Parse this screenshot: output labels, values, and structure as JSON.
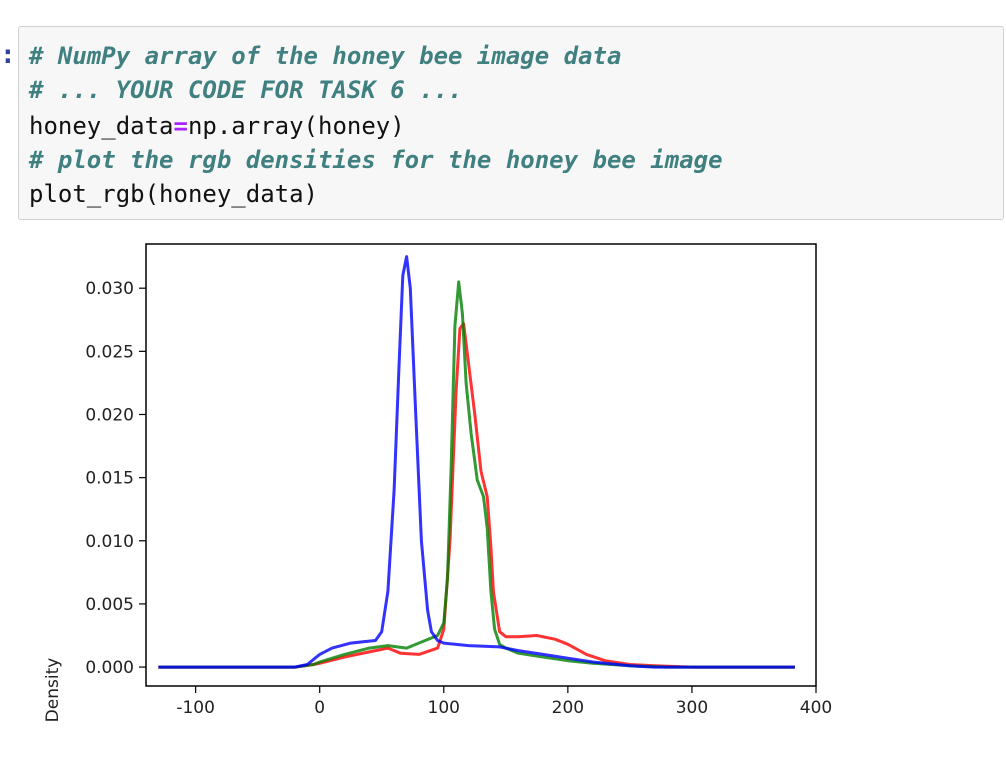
{
  "cell": {
    "prompt": ":",
    "line1": "# NumPy array of the honey bee image data",
    "line2": "# ... YOUR CODE FOR TASK 6 ...",
    "line3_left": "honey_data",
    "line3_op": "=",
    "line3_right": "np.array(honey)",
    "line4": "# plot the rgb densities for the honey bee image",
    "line5": "plot_rgb(honey_data)"
  },
  "colors": {
    "comment": "#408080",
    "operator": "#aa22ff",
    "red": "#ff0000",
    "green": "#008000",
    "blue": "#0000ff"
  },
  "chart_data": {
    "type": "line",
    "title": "",
    "xlabel": "",
    "ylabel": "Density",
    "xlim": [
      -140,
      400
    ],
    "ylim": [
      -0.0015,
      0.0335
    ],
    "xticks": [
      -100,
      0,
      100,
      200,
      300,
      400
    ],
    "xtick_labels": [
      "-100",
      "0",
      "100",
      "200",
      "300",
      "400"
    ],
    "yticks": [
      0.0,
      0.005,
      0.01,
      0.015,
      0.02,
      0.025,
      0.03
    ],
    "ytick_labels": [
      "0.000",
      "0.005",
      "0.010",
      "0.015",
      "0.020",
      "0.025",
      "0.030"
    ],
    "grid": false,
    "legend": "none",
    "series": [
      {
        "color": "#ff0000",
        "x": [
          -130,
          -20,
          -5,
          0,
          20,
          40,
          55,
          65,
          80,
          95,
          100,
          105,
          110,
          113,
          116,
          120,
          125,
          130,
          135,
          138,
          140,
          145,
          150,
          160,
          175,
          190,
          200,
          215,
          230,
          250,
          270,
          300,
          383
        ],
        "y": [
          0.0,
          0.0,
          0.0002,
          0.0003,
          0.0008,
          0.0012,
          0.0015,
          0.0011,
          0.001,
          0.0015,
          0.003,
          0.01,
          0.022,
          0.0268,
          0.0272,
          0.024,
          0.02,
          0.0155,
          0.0135,
          0.0095,
          0.006,
          0.0028,
          0.0024,
          0.0024,
          0.0025,
          0.0022,
          0.0018,
          0.001,
          0.0005,
          0.0002,
          0.0001,
          0.0,
          0.0
        ]
      },
      {
        "color": "#008000",
        "x": [
          -130,
          -20,
          -5,
          0,
          20,
          40,
          55,
          70,
          85,
          95,
          100,
          103,
          106,
          109,
          112,
          115,
          118,
          122,
          127,
          132,
          135,
          138,
          141,
          145,
          150,
          160,
          180,
          200,
          220,
          250,
          280,
          383
        ],
        "y": [
          0.0,
          0.0,
          0.0002,
          0.0004,
          0.001,
          0.0015,
          0.0017,
          0.0015,
          0.0021,
          0.0025,
          0.0035,
          0.007,
          0.016,
          0.027,
          0.0305,
          0.028,
          0.0225,
          0.0185,
          0.0148,
          0.0135,
          0.011,
          0.006,
          0.003,
          0.0018,
          0.0015,
          0.0011,
          0.0008,
          0.0005,
          0.0003,
          0.0001,
          0.0,
          0.0
        ]
      },
      {
        "color": "#0000ff",
        "x": [
          -130,
          -20,
          -10,
          0,
          10,
          25,
          35,
          45,
          50,
          55,
          60,
          64,
          67,
          70,
          73,
          77,
          82,
          87,
          90,
          95,
          100,
          120,
          145,
          160,
          180,
          200,
          220,
          250,
          270,
          383
        ],
        "y": [
          0.0,
          0.0,
          0.0002,
          0.001,
          0.0015,
          0.0019,
          0.002,
          0.0021,
          0.0028,
          0.006,
          0.014,
          0.024,
          0.031,
          0.0325,
          0.03,
          0.021,
          0.01,
          0.0045,
          0.0028,
          0.0021,
          0.0019,
          0.0017,
          0.0016,
          0.0013,
          0.001,
          0.0007,
          0.0004,
          0.0001,
          0.0,
          0.0
        ]
      }
    ]
  }
}
